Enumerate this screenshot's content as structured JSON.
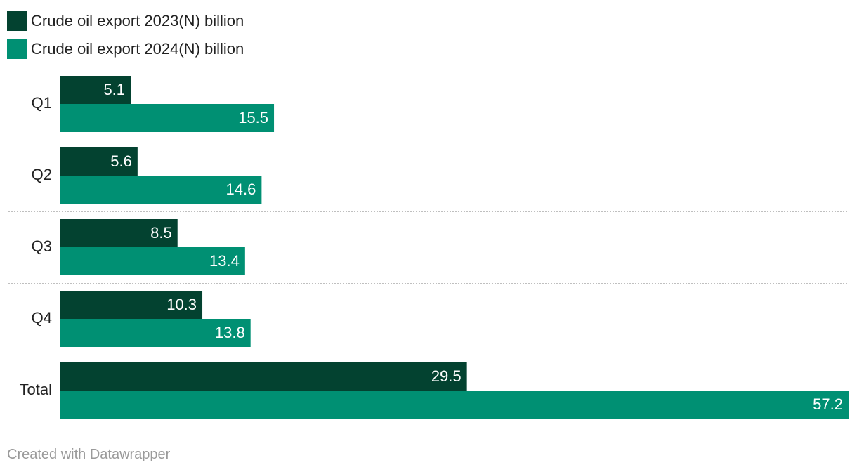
{
  "legend": {
    "items": [
      {
        "label": "Crude oil export 2023(N) billion",
        "color": "#034230"
      },
      {
        "label": "Crude oil export 2024(N) billion",
        "color": "#009073"
      }
    ]
  },
  "chart_data": {
    "type": "bar",
    "orientation": "horizontal",
    "categories": [
      "Q1",
      "Q2",
      "Q3",
      "Q4",
      "Total"
    ],
    "series": [
      {
        "name": "Crude oil export 2023(N) billion",
        "color": "#034230",
        "values": [
          5.1,
          5.6,
          8.5,
          10.3,
          29.5
        ]
      },
      {
        "name": "Crude oil export 2024(N) billion",
        "color": "#009073",
        "values": [
          15.5,
          14.6,
          13.4,
          13.8,
          57.2
        ]
      }
    ],
    "xlim": [
      0,
      57.2
    ],
    "value_labels": true,
    "grid": false,
    "legend_position": "top-left"
  },
  "footer": {
    "credit": "Created with Datawrapper"
  }
}
